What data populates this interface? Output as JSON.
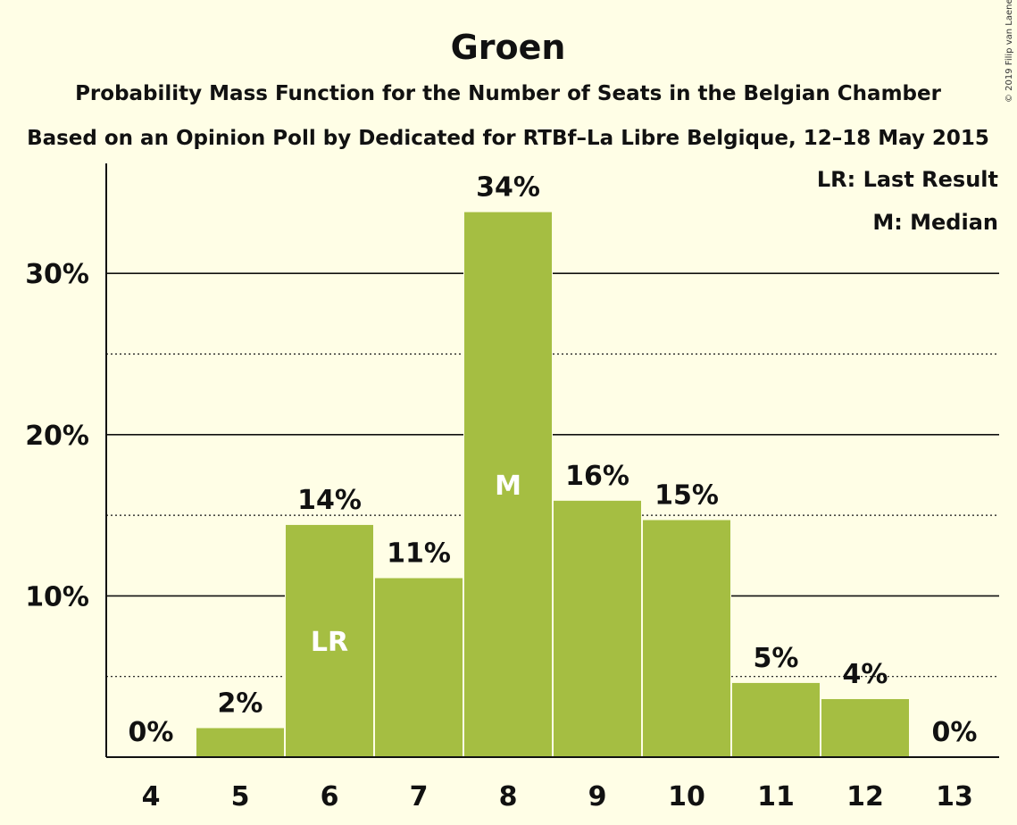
{
  "chart_data": {
    "type": "bar",
    "title": "Groen",
    "subtitle": "Probability Mass Function for the Number of Seats in the Belgian Chamber",
    "subtitle2": "Based on an Opinion Poll by Dedicated for RTBf–La Libre Belgique, 12–18 May 2015",
    "copyright": "© 2019 Filip van Laenen",
    "legend": [
      "LR: Last Result",
      "M: Median"
    ],
    "legend_position": "top-right",
    "categories": [
      "4",
      "5",
      "6",
      "7",
      "8",
      "9",
      "10",
      "11",
      "12",
      "13"
    ],
    "values": [
      0,
      1.8,
      14.4,
      11.1,
      33.8,
      15.9,
      14.7,
      4.6,
      3.6,
      0
    ],
    "data_labels": [
      "0%",
      "2%",
      "14%",
      "11%",
      "34%",
      "16%",
      "15%",
      "5%",
      "4%",
      "0%"
    ],
    "inner_labels": {
      "6": "LR",
      "8": "M"
    },
    "ylim": [
      0,
      37
    ],
    "yticks": [
      10,
      20,
      30
    ],
    "ytick_labels": [
      "10%",
      "20%",
      "30%"
    ],
    "minor_gridlines": [
      5,
      15,
      25
    ],
    "bar_color": "#A5BE42",
    "background_color": "#FFFEE6",
    "grid": true
  }
}
